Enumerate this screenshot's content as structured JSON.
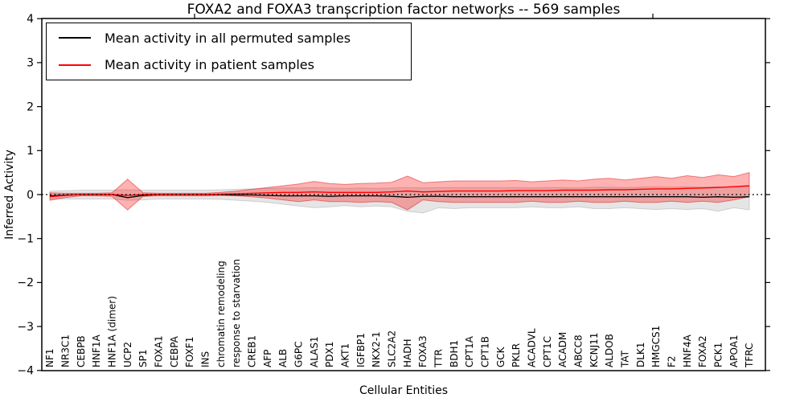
{
  "chart_data": {
    "type": "line",
    "title": "FOXA2 and FOXA3 transcription factor networks -- 569 samples",
    "xlabel": "Cellular Entities",
    "ylabel": "Inferred Activity",
    "ylim": [
      -4,
      4
    ],
    "grid": false,
    "legend_position": "upper left",
    "y_tick_values": [
      4,
      3,
      2,
      1,
      0,
      -1,
      -2,
      -3,
      -4
    ],
    "y_tick_labels": [
      "4",
      "3",
      "2",
      "1",
      "0",
      "−1",
      "−2",
      "−3",
      "−4"
    ],
    "zero_line": {
      "value": 0,
      "style": "dotted",
      "color": "#000000"
    },
    "categories": [
      "NF1",
      "NR3C1",
      "CEBPB",
      "HNF1A",
      "HNF1A (dimer)",
      "UCP2",
      "SP1",
      "FOXA1",
      "CEBPA",
      "FOXF1",
      "INS",
      "chromatin remodeling",
      "response to starvation",
      "CREB1",
      "AFP",
      "ALB",
      "G6PC",
      "ALAS1",
      "PDX1",
      "AKT1",
      "IGFBP1",
      "NKX2-1",
      "SLC2A2",
      "HADH",
      "FOXA3",
      "TTR",
      "BDH1",
      "CPT1A",
      "CPT1B",
      "GCK",
      "PKLR",
      "ACADVL",
      "CPT1C",
      "ACADM",
      "ABCC8",
      "KCNJ11",
      "ALDOB",
      "TAT",
      "DLK1",
      "HMGCS1",
      "F2",
      "HNF4A",
      "FOXA2",
      "PCK1",
      "APOA1",
      "TFRC"
    ],
    "series": [
      {
        "name": "Mean activity in all permuted samples",
        "color": "#000000",
        "band_color": "rgba(0,0,0,0.10)",
        "band_edge_color": "rgba(0,0,0,0.14)",
        "values": [
          -0.03,
          -0.01,
          0,
          0,
          0,
          -0.07,
          -0.02,
          0,
          0,
          0,
          0,
          0,
          -0.01,
          -0.01,
          -0.02,
          -0.03,
          -0.03,
          -0.03,
          -0.04,
          -0.03,
          -0.03,
          -0.03,
          -0.04,
          -0.06,
          -0.04,
          -0.04,
          -0.05,
          -0.05,
          -0.05,
          -0.05,
          -0.05,
          -0.05,
          -0.05,
          -0.05,
          -0.05,
          -0.05,
          -0.05,
          -0.05,
          -0.05,
          -0.05,
          -0.05,
          -0.05,
          -0.06,
          -0.05,
          -0.06,
          -0.05
        ],
        "band_upper": [
          0.08,
          0.09,
          0.1,
          0.1,
          0.1,
          0.11,
          0.1,
          0.1,
          0.1,
          0.1,
          0.1,
          0.11,
          0.12,
          0.13,
          0.14,
          0.15,
          0.15,
          0.16,
          0.15,
          0.14,
          0.15,
          0.14,
          0.15,
          0.16,
          0.15,
          0.16,
          0.16,
          0.16,
          0.16,
          0.16,
          0.16,
          0.15,
          0.16,
          0.16,
          0.15,
          0.17,
          0.17,
          0.16,
          0.17,
          0.18,
          0.17,
          0.18,
          0.17,
          0.18,
          0.16,
          0.18
        ],
        "band_lower": [
          -0.1,
          -0.1,
          -0.1,
          -0.1,
          -0.1,
          -0.13,
          -0.12,
          -0.1,
          -0.1,
          -0.1,
          -0.1,
          -0.11,
          -0.13,
          -0.15,
          -0.18,
          -0.22,
          -0.26,
          -0.3,
          -0.28,
          -0.25,
          -0.28,
          -0.26,
          -0.28,
          -0.38,
          -0.42,
          -0.3,
          -0.32,
          -0.3,
          -0.3,
          -0.3,
          -0.3,
          -0.28,
          -0.3,
          -0.3,
          -0.28,
          -0.32,
          -0.32,
          -0.3,
          -0.32,
          -0.34,
          -0.32,
          -0.34,
          -0.32,
          -0.38,
          -0.3,
          -0.35
        ]
      },
      {
        "name": "Mean activity in patient samples",
        "color": "#ff0000",
        "band_color": "rgba(255,0,0,0.30)",
        "band_edge_color": "rgba(220,0,0,0.45)",
        "values": [
          -0.05,
          -0.02,
          0,
          0,
          0,
          -0.02,
          0,
          0,
          0,
          0,
          0,
          0.01,
          0.02,
          0.03,
          0.04,
          0.05,
          0.05,
          0.06,
          0.05,
          0.05,
          0.05,
          0.05,
          0.06,
          0.08,
          0.06,
          0.07,
          0.08,
          0.08,
          0.08,
          0.08,
          0.09,
          0.09,
          0.09,
          0.1,
          0.1,
          0.1,
          0.11,
          0.11,
          0.12,
          0.13,
          0.13,
          0.14,
          0.15,
          0.16,
          0.18,
          0.2
        ],
        "band_upper": [
          0.04,
          0.03,
          0.03,
          0.03,
          0.04,
          0.35,
          0.04,
          0.03,
          0.03,
          0.03,
          0.03,
          0.05,
          0.08,
          0.12,
          0.16,
          0.2,
          0.24,
          0.3,
          0.25,
          0.23,
          0.25,
          0.26,
          0.28,
          0.42,
          0.27,
          0.29,
          0.31,
          0.31,
          0.31,
          0.31,
          0.32,
          0.29,
          0.31,
          0.33,
          0.31,
          0.35,
          0.37,
          0.33,
          0.37,
          0.41,
          0.37,
          0.43,
          0.39,
          0.45,
          0.41,
          0.5
        ],
        "band_lower": [
          -0.13,
          -0.07,
          -0.03,
          -0.03,
          -0.04,
          -0.35,
          -0.04,
          -0.03,
          -0.03,
          -0.03,
          -0.03,
          -0.02,
          -0.03,
          -0.05,
          -0.08,
          -0.12,
          -0.16,
          -0.12,
          -0.16,
          -0.16,
          -0.18,
          -0.16,
          -0.18,
          -0.35,
          -0.12,
          -0.16,
          -0.18,
          -0.18,
          -0.18,
          -0.18,
          -0.18,
          -0.15,
          -0.18,
          -0.18,
          -0.15,
          -0.18,
          -0.18,
          -0.15,
          -0.18,
          -0.18,
          -0.15,
          -0.18,
          -0.15,
          -0.18,
          -0.12,
          -0.05
        ]
      }
    ]
  }
}
